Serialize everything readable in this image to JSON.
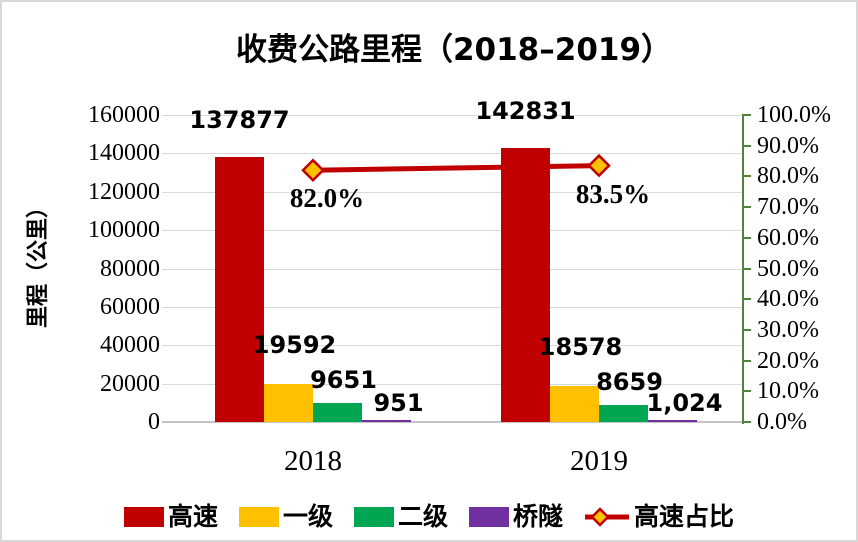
{
  "chart_data": {
    "type": "bar+line",
    "title": "收费公路里程（2018–2019）",
    "categories": [
      "2018",
      "2019"
    ],
    "left_axis": {
      "title": "里程（公里）",
      "min": 0,
      "max": 160000,
      "step": 20000,
      "tick_labels": [
        "0",
        "20000",
        "40000",
        "60000",
        "80000",
        "100000",
        "120000",
        "140000",
        "160000"
      ]
    },
    "right_axis": {
      "min": 0,
      "max": 100,
      "step": 10,
      "tick_labels": [
        "0.0%",
        "10.0%",
        "20.0%",
        "30.0%",
        "40.0%",
        "50.0%",
        "60.0%",
        "70.0%",
        "80.0%",
        "90.0%",
        "100.0%"
      ],
      "axis_color": "#538135"
    },
    "series": [
      {
        "key": "expressway",
        "name": "高速",
        "type": "bar",
        "color": "#C00000",
        "values": [
          137877,
          142831
        ],
        "data_labels": [
          "137877",
          "142831"
        ]
      },
      {
        "key": "class-1",
        "name": "一级",
        "type": "bar",
        "color": "#FFC000",
        "values": [
          19592,
          18578
        ],
        "data_labels": [
          "19592",
          "18578"
        ]
      },
      {
        "key": "class-2",
        "name": "二级",
        "type": "bar",
        "color": "#00A651",
        "values": [
          9651,
          8659
        ],
        "data_labels": [
          "9651",
          "8659"
        ]
      },
      {
        "key": "bridge-tunnel",
        "name": "桥隧",
        "type": "bar",
        "color": "#7030A0",
        "values": [
          951,
          1024
        ],
        "data_labels": [
          "951",
          "1,024"
        ]
      },
      {
        "key": "expressway-share",
        "name": "高速占比",
        "type": "line",
        "color": "#C00000",
        "marker": "diamond",
        "marker_fill": "#FFC000",
        "values_pct": [
          82.0,
          83.5
        ],
        "data_labels": [
          "82.0%",
          "83.5%"
        ]
      }
    ],
    "grid": true,
    "legend_position": "bottom",
    "styles": {
      "gridline_color": "#D9D9D9",
      "baseline_color": "#C4C4C4",
      "text_color": "#000000",
      "background": "#FFFFFF",
      "frame_border": "#D8D8D8"
    }
  }
}
